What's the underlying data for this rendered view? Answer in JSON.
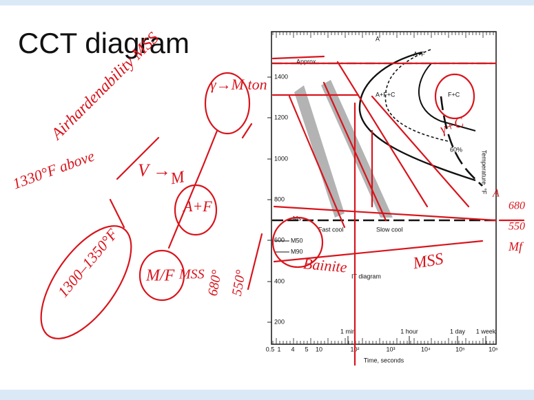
{
  "slide": {
    "title": "CCT diagram"
  },
  "figure": {
    "y_axis_label": "Temperature, °F",
    "x_axis_label": "Time, seconds",
    "y_ticks": [
      "1400",
      "1200",
      "1000",
      "800",
      "600",
      "400",
      "200"
    ],
    "x_ticks": [
      "0.5",
      "1",
      "4",
      "5",
      "10",
      "10²",
      "10³",
      "10⁴",
      "10⁵",
      "10⁶"
    ],
    "time_marks": [
      "1 min",
      "1 hour",
      "1 day",
      "1 week"
    ],
    "labels": [
      "Approx.",
      "A",
      "A+F",
      "A+F+C",
      "F+C",
      "60%",
      "Fast cool",
      "Slow cool",
      "IT diagram",
      "Ms",
      "M50",
      "M90"
    ]
  },
  "annotations": [
    "Airhardenability MSS",
    "1330°F above",
    "V →",
    "M",
    "γ→M ton",
    "A+F",
    "1300–1350°F",
    "M/F",
    "MSS",
    "680°",
    "550°",
    "Bainite",
    "MSS",
    "680",
    "550",
    "Mf",
    "γ+C",
    "A"
  ]
}
